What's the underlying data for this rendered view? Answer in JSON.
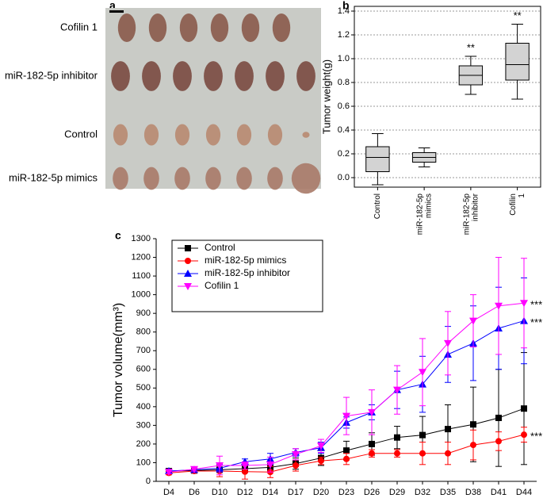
{
  "photo": {
    "panel_label": "a",
    "rows": [
      "Cofilin 1",
      "miR-182-5p inhibitor",
      "Control",
      "miR-182-5p mimics"
    ]
  },
  "chart_data": [
    {
      "type": "box",
      "panel_label": "b",
      "ylabel": "Tumor weight(g)",
      "categories": [
        "Control",
        "miR-182-5p mimics",
        "miR-182-5p inhibitor",
        "Cofilin 1"
      ],
      "boxes": [
        {
          "min": -0.06,
          "q1": 0.05,
          "median": 0.17,
          "q3": 0.26,
          "max": 0.37
        },
        {
          "min": 0.09,
          "q1": 0.13,
          "median": 0.17,
          "q3": 0.21,
          "max": 0.25
        },
        {
          "min": 0.7,
          "q1": 0.78,
          "median": 0.86,
          "q3": 0.94,
          "max": 1.02
        },
        {
          "min": 0.66,
          "q1": 0.82,
          "median": 0.95,
          "q3": 1.13,
          "max": 1.29
        }
      ],
      "significance": [
        null,
        null,
        "**",
        "**"
      ],
      "color": "#d3d3d3",
      "ylim": [
        -0.08,
        1.44
      ],
      "yticks": [
        {
          "value": 0,
          "label": "0.0"
        },
        0.2,
        0.4,
        0.6,
        0.8,
        {
          "value": 1,
          "label": "1.0"
        },
        1.2,
        1.4
      ],
      "grid": true
    },
    {
      "type": "line",
      "panel_label": "c",
      "ylabel": "Tumor volume(mm³)",
      "categories": [
        "D4",
        "D6",
        "D10",
        "D12",
        "D14",
        "D17",
        "D20",
        "D23",
        "D26",
        "D29",
        "D32",
        "D35",
        "D38",
        "D41",
        "D44"
      ],
      "series": [
        {
          "name": "Control",
          "color": "#000000",
          "marker": "square",
          "values": [
            55,
            58,
            62,
            68,
            75,
            95,
            125,
            165,
            200,
            235,
            248,
            280,
            305,
            340,
            390
          ],
          "errors": [
            10,
            10,
            15,
            20,
            20,
            30,
            40,
            50,
            60,
            60,
            100,
            130,
            200,
            260,
            300
          ]
        },
        {
          "name": "miR-182-5p mimics",
          "color": "#ff0000",
          "marker": "circle",
          "annotation": "***",
          "values": [
            45,
            55,
            55,
            52,
            50,
            85,
            110,
            120,
            150,
            150,
            150,
            150,
            195,
            215,
            250
          ],
          "errors": [
            10,
            10,
            30,
            40,
            30,
            30,
            20,
            30,
            20,
            20,
            60,
            60,
            80,
            50,
            40
          ]
        },
        {
          "name": "miR-182-5p inhibitor",
          "color": "#0000ff",
          "marker": "triangle-up",
          "annotation": "***",
          "values": [
            55,
            62,
            70,
            105,
            120,
            155,
            180,
            315,
            370,
            490,
            520,
            680,
            740,
            820,
            860
          ],
          "errors": [
            10,
            10,
            20,
            15,
            30,
            20,
            30,
            30,
            40,
            100,
            150,
            150,
            200,
            220,
            230
          ]
        },
        {
          "name": "Cofilin 1",
          "color": "#ff00ff",
          "marker": "triangle-down",
          "annotation": "***",
          "values": [
            50,
            65,
            85,
            85,
            90,
            145,
            190,
            350,
            370,
            490,
            585,
            740,
            860,
            940,
            955
          ],
          "errors": [
            10,
            10,
            50,
            20,
            40,
            30,
            35,
            100,
            120,
            130,
            180,
            170,
            140,
            260,
            240
          ]
        }
      ],
      "ylim": [
        0,
        1300
      ],
      "yticks": [
        0,
        100,
        200,
        300,
        400,
        500,
        600,
        700,
        800,
        900,
        1000,
        1100,
        1200,
        1300
      ],
      "legend": "upper-left"
    }
  ]
}
